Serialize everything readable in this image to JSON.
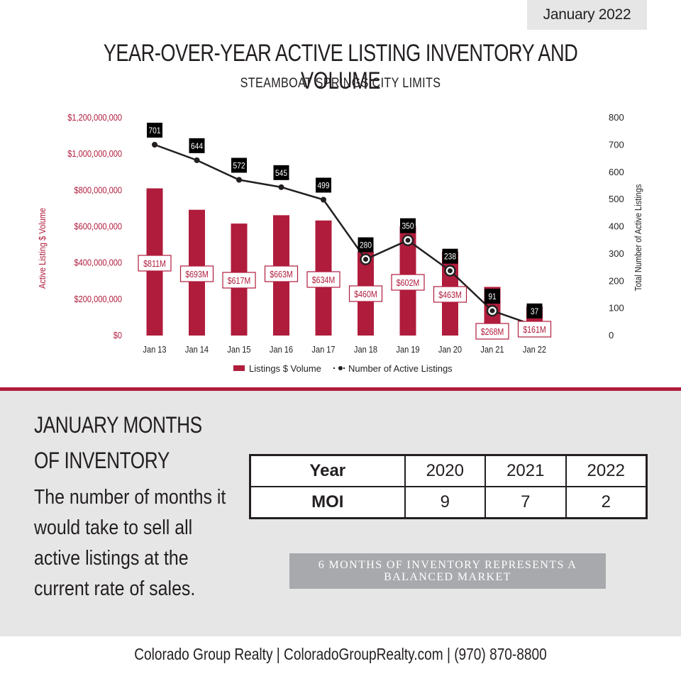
{
  "header": {
    "date": "January 2022",
    "title": "YEAR-OVER-YEAR ACTIVE LISTING INVENTORY AND VOLUME",
    "subtitle": "STEAMBOAT SPRINGS CITY LIMITS"
  },
  "chart_data": {
    "type": "bar",
    "categories": [
      "Jan 13",
      "Jan 14",
      "Jan 15",
      "Jan 16",
      "Jan 17",
      "Jan 18",
      "Jan 19",
      "Jan 20",
      "Jan 21",
      "Jan 22"
    ],
    "series": [
      {
        "name": "Listings $ Volume",
        "type": "bar",
        "axis": "left",
        "values": [
          811000000,
          693000000,
          617000000,
          663000000,
          634000000,
          460000000,
          602000000,
          463000000,
          268000000,
          161000000
        ],
        "labels": [
          "$811M",
          "$693M",
          "$617M",
          "$663M",
          "$634M",
          "$460M",
          "$602M",
          "$463M",
          "$268M",
          "$161M"
        ]
      },
      {
        "name": "Number of Active Listings",
        "type": "line",
        "axis": "right",
        "values": [
          701,
          644,
          572,
          545,
          499,
          280,
          350,
          238,
          91,
          37
        ]
      }
    ],
    "ylabel_left": "Active Listing $ Volume",
    "ylabel_right": "Total Number of Active Listings",
    "ylim_left": [
      0,
      1200000000
    ],
    "ylim_right": [
      0,
      800
    ],
    "yticks_left": [
      "$0",
      "$200,000,000",
      "$400,000,000",
      "$600,000,000",
      "$800,000,000",
      "$1,000,000,000",
      "$1,200,000,000"
    ],
    "yticks_right": [
      "0",
      "100",
      "200",
      "300",
      "400",
      "500",
      "600",
      "700",
      "800"
    ],
    "legend_position": "bottom",
    "grid": false,
    "colors": {
      "bar": "#b01c3c",
      "line": "#231f20",
      "left_axis": "#b01c3c"
    }
  },
  "moi": {
    "heading_line1": "JANUARY MONTHS",
    "heading_line2": "OF INVENTORY",
    "description": "The number of months it would take to sell all active listings at the current rate of sales.",
    "table": {
      "header_label": "Year",
      "row_label": "MOI",
      "years": [
        "2020",
        "2021",
        "2022"
      ],
      "values": [
        "9",
        "7",
        "2"
      ]
    },
    "note": "6 months of inventory represents a balanced market"
  },
  "footer": {
    "text": "Colorado Group Realty | ColoradoGroupRealty.com | (970) 870-8800"
  }
}
